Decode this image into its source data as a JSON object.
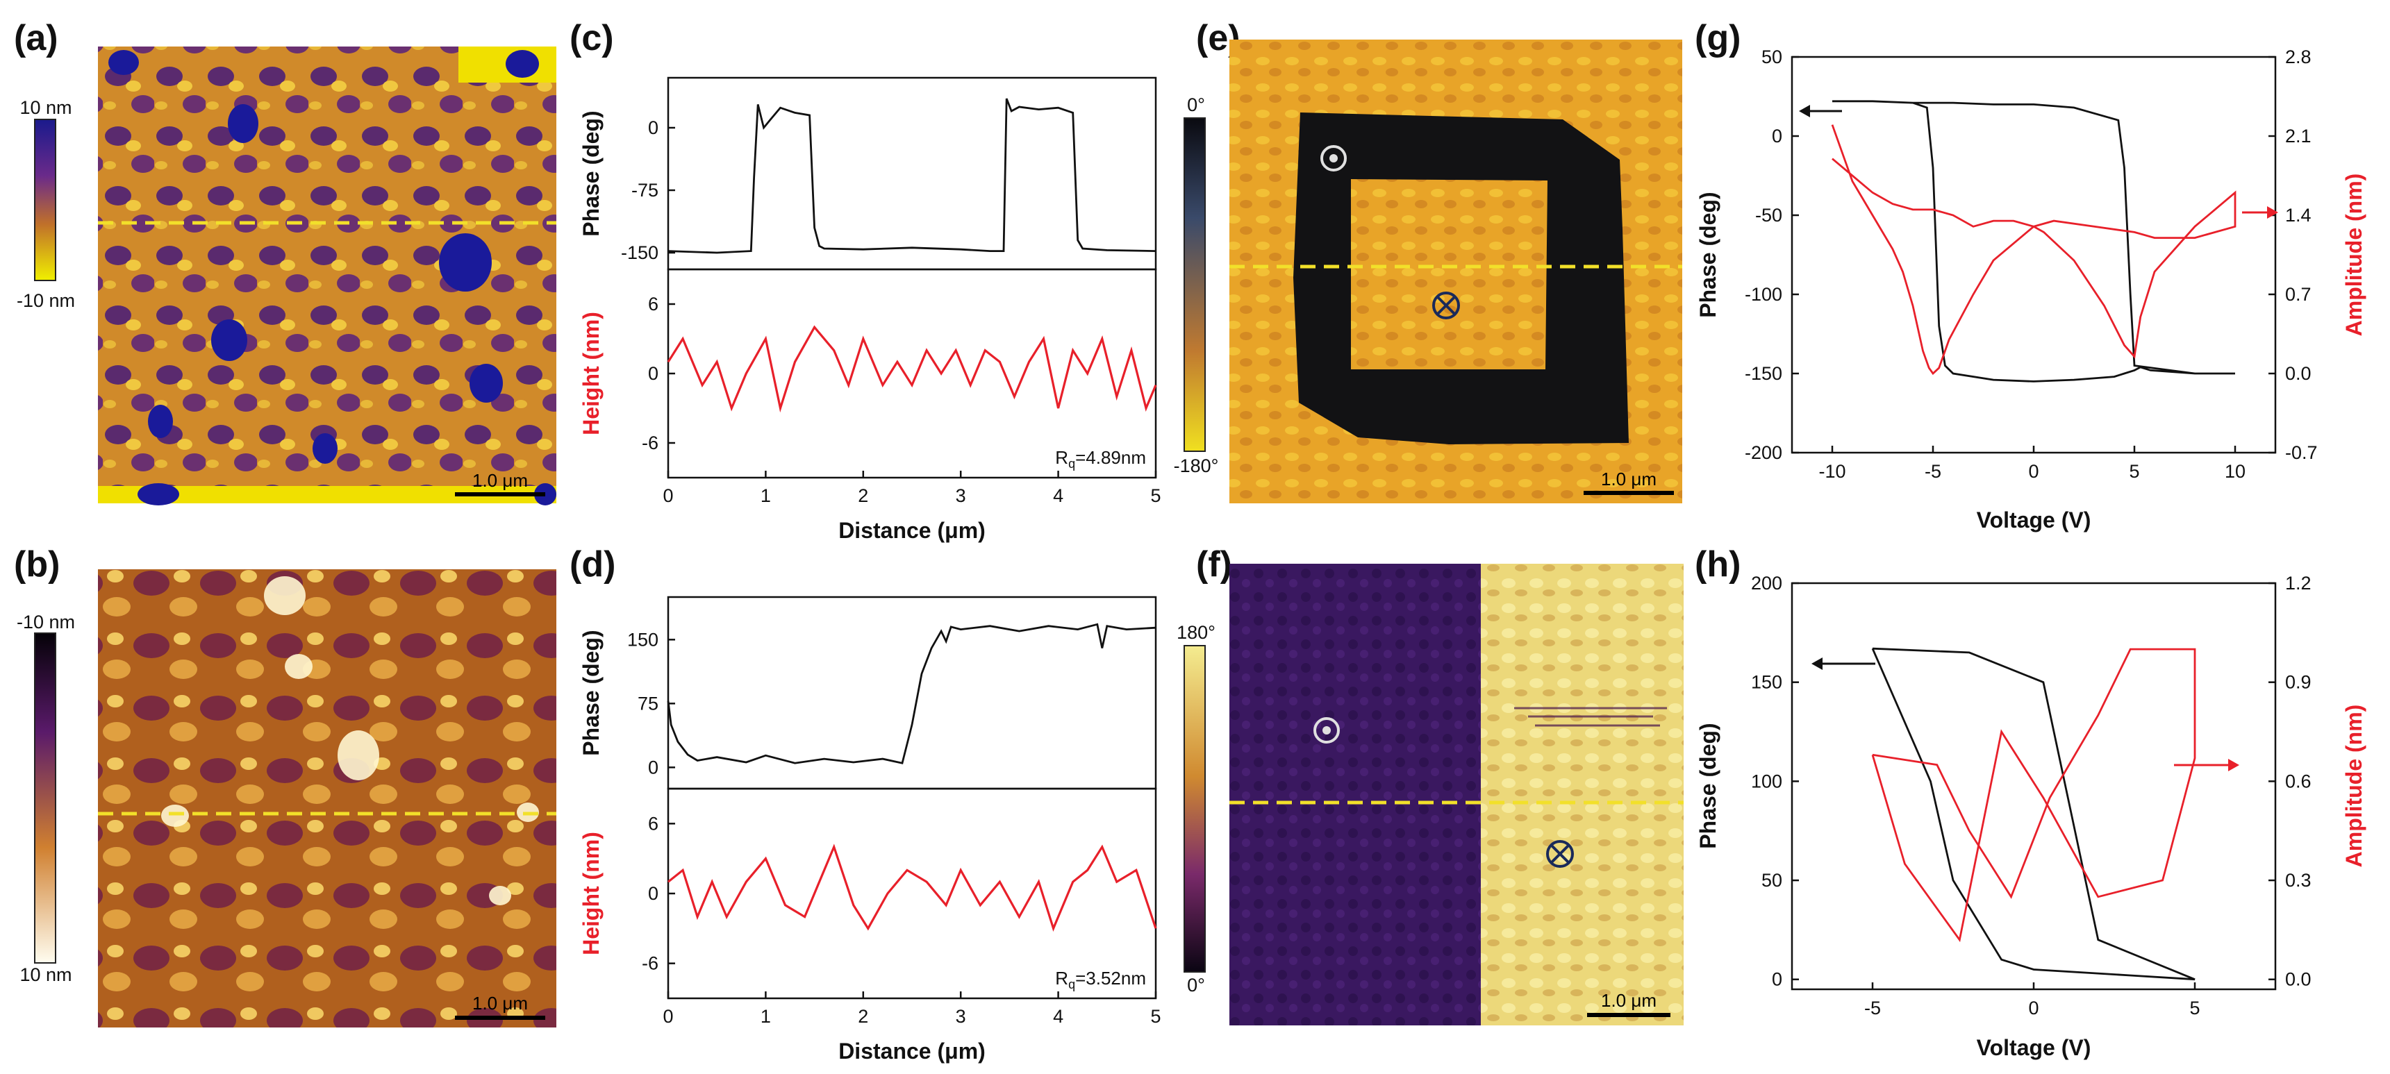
{
  "colors": {
    "phase_line": "#111111",
    "height_line": "#e8202a",
    "amplitude_line": "#e8202a",
    "dashed_marker": "#f2e02a",
    "scalebar": "#000000"
  },
  "panels": {
    "a": {
      "label": "(a)",
      "colorbar_top": "10 nm",
      "colorbar_bottom": "-10 nm",
      "scalebar": "1.0 μm"
    },
    "b": {
      "label": "(b)",
      "colorbar_top": "-10 nm",
      "colorbar_bottom": "10 nm",
      "scalebar": "1.0 μm"
    },
    "c": {
      "label": "(c)",
      "top_ylabel": "Phase (deg)",
      "bottom_ylabel": "Height (nm)",
      "xlabel": "Distance (μm)",
      "rq_prefix": "R",
      "rq_sub": "q",
      "rq_value": "=4.89nm"
    },
    "d": {
      "label": "(d)",
      "top_ylabel": "Phase (deg)",
      "bottom_ylabel": "Height (nm)",
      "xlabel": "Distance (μm)",
      "rq_prefix": "R",
      "rq_sub": "q",
      "rq_value": "=3.52nm"
    },
    "e": {
      "label": "(e)",
      "colorbar_top": "0°",
      "colorbar_bottom": "-180°",
      "scalebar": "1.0 μm"
    },
    "f": {
      "label": "(f)",
      "colorbar_top": "180°",
      "colorbar_bottom": "0°",
      "scalebar": "1.0 μm"
    },
    "g": {
      "label": "(g)",
      "ylabel_left": "Phase (deg)",
      "ylabel_right": "Amplitude (nm)",
      "xlabel": "Voltage (V)"
    },
    "h": {
      "label": "(h)",
      "ylabel_left": "Phase (deg)",
      "ylabel_right": "Amplitude (nm)",
      "xlabel": "Voltage (V)"
    }
  },
  "chart_data": [
    {
      "id": "c",
      "type": "line",
      "x_range": [
        0,
        5
      ],
      "x_ticks": [
        "0",
        "1",
        "2",
        "3",
        "4",
        "5"
      ],
      "top": {
        "ylabel": "Phase (deg)",
        "ylim": [
          -170,
          60
        ],
        "y_ticks": [
          "0",
          "-75",
          "-150"
        ],
        "series": [
          {
            "name": "Phase",
            "x": [
              0,
              0.5,
              0.85,
              0.88,
              0.92,
              0.98,
              1.05,
              1.15,
              1.3,
              1.45,
              1.5,
              1.55,
              1.6,
              2.0,
              2.5,
              3.0,
              3.3,
              3.44,
              3.47,
              3.52,
              3.6,
              3.8,
              4.0,
              4.15,
              4.2,
              4.25,
              4.5,
              5.0
            ],
            "y": [
              -148,
              -150,
              -148,
              -60,
              28,
              0,
              10,
              24,
              18,
              15,
              -120,
              -142,
              -145,
              -146,
              -144,
              -146,
              -148,
              -148,
              35,
              20,
              25,
              22,
              24,
              18,
              -135,
              -145,
              -147,
              -148
            ]
          }
        ]
      },
      "bottom": {
        "ylabel": "Height (nm)",
        "ylim": [
          -9,
          9
        ],
        "y_ticks": [
          "6",
          "0",
          "-6"
        ],
        "series": [
          {
            "name": "Height",
            "x": [
              0,
              0.15,
              0.35,
              0.5,
              0.65,
              0.8,
              1.0,
              1.15,
              1.3,
              1.5,
              1.7,
              1.85,
              2.0,
              2.2,
              2.35,
              2.5,
              2.65,
              2.8,
              2.95,
              3.1,
              3.25,
              3.4,
              3.55,
              3.7,
              3.85,
              4.0,
              4.15,
              4.3,
              4.45,
              4.6,
              4.75,
              4.9,
              5.0
            ],
            "y": [
              1,
              3,
              -1,
              1,
              -3,
              0,
              3,
              -3,
              1,
              4,
              2,
              -1,
              3,
              -1,
              1,
              -1,
              2,
              0,
              2,
              -1,
              2,
              1,
              -2,
              1,
              3,
              -3,
              2,
              0,
              3,
              -2,
              2,
              -3,
              -1
            ]
          }
        ]
      },
      "xlabel": "Distance (μm)",
      "annotation": "Rq=4.89nm"
    },
    {
      "id": "d",
      "type": "line",
      "x_range": [
        0,
        5
      ],
      "x_ticks": [
        "0",
        "1",
        "2",
        "3",
        "4",
        "5"
      ],
      "top": {
        "ylabel": "Phase (deg)",
        "ylim": [
          -25,
          200
        ],
        "y_ticks": [
          "150",
          "75",
          "0"
        ],
        "series": [
          {
            "name": "Phase",
            "x": [
              0,
              0.03,
              0.1,
              0.2,
              0.3,
              0.5,
              0.8,
              1.0,
              1.3,
              1.6,
              1.9,
              2.2,
              2.4,
              2.5,
              2.6,
              2.7,
              2.8,
              2.85,
              2.9,
              3.0,
              3.3,
              3.6,
              3.9,
              4.2,
              4.4,
              4.45,
              4.5,
              4.7,
              5.0
            ],
            "y": [
              78,
              50,
              30,
              15,
              8,
              12,
              6,
              14,
              5,
              10,
              6,
              10,
              5,
              50,
              110,
              140,
              160,
              148,
              165,
              162,
              166,
              160,
              166,
              162,
              168,
              140,
              166,
              162,
              164
            ]
          }
        ]
      },
      "bottom": {
        "ylabel": "Height (nm)",
        "ylim": [
          -9,
          9
        ],
        "y_ticks": [
          "6",
          "0",
          "-6"
        ],
        "series": [
          {
            "name": "Height",
            "x": [
              0,
              0.15,
              0.3,
              0.45,
              0.6,
              0.8,
              1.0,
              1.2,
              1.4,
              1.55,
              1.7,
              1.9,
              2.05,
              2.25,
              2.45,
              2.65,
              2.85,
              3.0,
              3.2,
              3.4,
              3.6,
              3.8,
              3.95,
              4.15,
              4.3,
              4.45,
              4.6,
              4.8,
              5.0
            ],
            "y": [
              1,
              2,
              -2,
              1,
              -2,
              1,
              3,
              -1,
              -2,
              1,
              4,
              -1,
              -3,
              0,
              2,
              1,
              -1,
              2,
              -1,
              1,
              -2,
              1,
              -3,
              1,
              2,
              4,
              1,
              2,
              -3
            ]
          }
        ]
      },
      "xlabel": "Distance (μm)",
      "annotation": "Rq=3.52nm"
    },
    {
      "id": "g",
      "type": "line",
      "xlim": [
        -12,
        12
      ],
      "x_ticks": [
        -10,
        -5,
        0,
        5,
        10
      ],
      "ylim_left": [
        -200,
        50
      ],
      "y_ticks_left": [
        50,
        0,
        -50,
        -100,
        -150,
        -200
      ],
      "ylim_right": [
        -0.7,
        2.8
      ],
      "y_ticks_right": [
        "2.8",
        "2.1",
        "1.4",
        "0.7",
        "0.0",
        "-0.7"
      ],
      "xlabel": "Voltage (V)",
      "ylabel_left": "Phase (deg)",
      "ylabel_right": "Amplitude (nm)",
      "series": [
        {
          "name": "Phase",
          "axis": "left",
          "x": [
            -10,
            -8,
            -6,
            -5.3,
            -5.0,
            -4.7,
            -4.4,
            -4.0,
            -2,
            0,
            2,
            4,
            4.5,
            5.0,
            5.3,
            5.8,
            8,
            10,
            10,
            8,
            5,
            4.8,
            4.5,
            4.2,
            2,
            0,
            -2,
            -4,
            -6,
            -8,
            -10
          ],
          "y": [
            22,
            22,
            21,
            18,
            -20,
            -120,
            -145,
            -150,
            -154,
            -155,
            -154,
            -152,
            -150,
            -148,
            -146,
            -148,
            -150,
            -150,
            -150,
            -150,
            -145,
            -100,
            -20,
            10,
            18,
            20,
            20,
            21,
            21,
            22,
            22
          ]
        },
        {
          "name": "Amplitude",
          "axis": "right",
          "x": [
            -10,
            -9,
            -8,
            -7,
            -6.5,
            -6,
            -5.5,
            -5.2,
            -5,
            -4.7,
            -4.2,
            -3,
            -2,
            0,
            1,
            3,
            5,
            6,
            8,
            10,
            10,
            8,
            6,
            5.3,
            5,
            4.5,
            3.5,
            2,
            0.5,
            0,
            -1,
            -2,
            -3,
            -4,
            -5,
            -6,
            -7,
            -8,
            -10
          ],
          "y": [
            2.2,
            1.7,
            1.4,
            1.1,
            0.9,
            0.6,
            0.2,
            0.05,
            0.0,
            0.05,
            0.3,
            0.7,
            1.0,
            1.3,
            1.35,
            1.3,
            1.25,
            1.2,
            1.2,
            1.3,
            1.6,
            1.3,
            0.9,
            0.5,
            0.15,
            0.25,
            0.6,
            1.0,
            1.25,
            1.3,
            1.35,
            1.35,
            1.3,
            1.4,
            1.45,
            1.45,
            1.5,
            1.6,
            1.9
          ]
        }
      ]
    },
    {
      "id": "h",
      "type": "line",
      "xlim": [
        -7.5,
        7.5
      ],
      "x_ticks": [
        -5,
        0,
        5
      ],
      "ylim_left": [
        -5,
        200
      ],
      "y_ticks_left": [
        200,
        150,
        100,
        50,
        0
      ],
      "ylim_right": [
        -0.03,
        1.2
      ],
      "y_ticks_right": [
        "1.2",
        "0.9",
        "0.6",
        "0.3",
        "0.0"
      ],
      "xlabel": "Voltage (V)",
      "ylabel_left": "Phase (deg)",
      "ylabel_right": "Amplitude (nm)",
      "series": [
        {
          "name": "Phase",
          "axis": "left",
          "x": [
            -5,
            -3.2,
            -2.5,
            -1,
            0,
            3,
            5,
            5,
            2,
            0.3,
            -2,
            -5
          ],
          "y": [
            167,
            100,
            50,
            10,
            5,
            2,
            0,
            0,
            20,
            150,
            165,
            167
          ]
        },
        {
          "name": "Amplitude",
          "axis": "right",
          "x": [
            -5,
            -3,
            -2,
            -0.7,
            0.5,
            2,
            3,
            5,
            5,
            4,
            2,
            0.3,
            -1,
            -2.3,
            -4,
            -5
          ],
          "y": [
            0.68,
            0.65,
            0.45,
            0.25,
            0.55,
            0.8,
            1.0,
            1.0,
            0.67,
            0.3,
            0.25,
            0.55,
            0.75,
            0.12,
            0.35,
            0.68
          ]
        }
      ]
    }
  ]
}
